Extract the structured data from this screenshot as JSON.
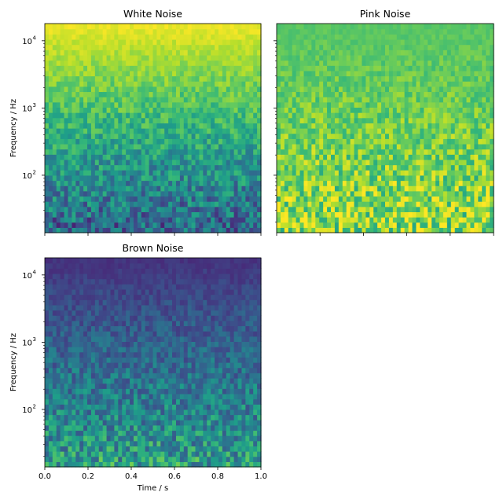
{
  "figure": {
    "colormap": "viridis"
  },
  "chart_data": [
    {
      "type": "heatmap",
      "title": "White Noise",
      "xlabel": "",
      "ylabel": "Frequency / Hz",
      "xlim": [
        0,
        1
      ],
      "ylim": [
        14,
        18000
      ],
      "yscale": "log",
      "x_ticks": [
        0,
        0.2,
        0.4,
        0.6,
        0.8,
        1.0
      ],
      "x_tick_labels": [],
      "y_ticks": [
        100,
        1000,
        10000
      ],
      "y_tick_labels": [
        "10",
        "10",
        "10"
      ],
      "y_tick_exponents": [
        "2",
        "3",
        "4"
      ],
      "level_low_freq": 0.32,
      "level_high_freq": 0.97
    },
    {
      "type": "heatmap",
      "title": "Pink Noise",
      "xlabel": "",
      "ylabel": "",
      "xlim": [
        0,
        1
      ],
      "ylim": [
        14,
        18000
      ],
      "yscale": "log",
      "x_ticks": [
        0,
        0.2,
        0.4,
        0.6,
        0.8,
        1.0
      ],
      "x_tick_labels": [],
      "y_ticks": [
        100,
        1000,
        10000
      ],
      "y_tick_labels": [],
      "y_tick_exponents": [],
      "level_low_freq": 0.82,
      "level_high_freq": 0.74
    },
    {
      "type": "heatmap",
      "title": "Brown Noise",
      "xlabel": "Time / s",
      "ylabel": "Frequency / Hz",
      "xlim": [
        0,
        1
      ],
      "ylim": [
        14,
        18000
      ],
      "yscale": "log",
      "x_ticks": [
        0,
        0.2,
        0.4,
        0.6,
        0.8,
        1.0
      ],
      "x_tick_labels": [
        "0.0",
        "0.2",
        "0.4",
        "0.6",
        "0.8",
        "1.0"
      ],
      "y_ticks": [
        100,
        1000,
        10000
      ],
      "y_tick_labels": [
        "10",
        "10",
        "10"
      ],
      "y_tick_exponents": [
        "2",
        "3",
        "4"
      ],
      "level_low_freq": 0.55,
      "level_high_freq": 0.15
    }
  ]
}
